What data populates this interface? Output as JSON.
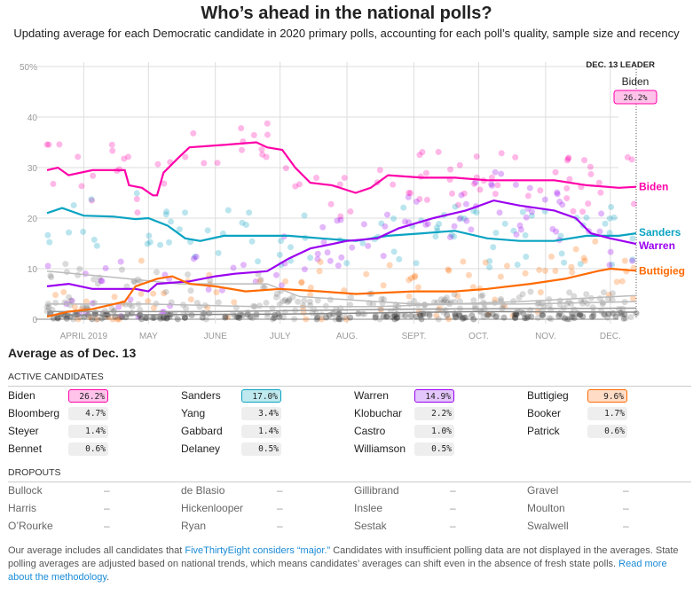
{
  "header": {
    "title": "Who’s ahead in the national polls?",
    "subtitle": "Updating average for each Democratic candidate in 2020 primary polls, accounting for each poll’s quality, sample size and recency"
  },
  "chart_data": {
    "type": "line",
    "ylim": [
      0,
      50
    ],
    "yticks": [
      "0",
      "10",
      "20",
      "30",
      "40",
      "50%"
    ],
    "ytick_values": [
      0,
      10,
      20,
      30,
      40,
      50
    ],
    "xticks": [
      {
        "date": "2019-04-01",
        "label": "APRIL 2019"
      },
      {
        "date": "2019-05-01",
        "label": "MAY"
      },
      {
        "date": "2019-06-01",
        "label": "JUNE"
      },
      {
        "date": "2019-07-01",
        "label": "JULY"
      },
      {
        "date": "2019-08-01",
        "label": "AUG."
      },
      {
        "date": "2019-09-01",
        "label": "SEPT."
      },
      {
        "date": "2019-10-01",
        "label": "OCT."
      },
      {
        "date": "2019-11-01",
        "label": "NOV."
      },
      {
        "date": "2019-12-01",
        "label": "DEC."
      }
    ],
    "xlim": [
      "2019-03-15",
      "2019-12-13"
    ],
    "leader": {
      "label": "DEC. 13 LEADER",
      "name": "Biden",
      "value": "26.2%"
    },
    "series": [
      {
        "name": "Biden",
        "color": "#ff00a8",
        "points": [
          [
            "2019-03-15",
            29.5
          ],
          [
            "2019-03-20",
            30
          ],
          [
            "2019-03-25",
            28.5
          ],
          [
            "2019-04-05",
            29.5
          ],
          [
            "2019-04-15",
            29.5
          ],
          [
            "2019-04-20",
            29.5
          ],
          [
            "2019-04-22",
            26.5
          ],
          [
            "2019-04-28",
            26
          ],
          [
            "2019-05-03",
            24.5
          ],
          [
            "2019-05-05",
            24.5
          ],
          [
            "2019-05-08",
            29
          ],
          [
            "2019-05-15",
            32
          ],
          [
            "2019-05-20",
            34
          ],
          [
            "2019-06-05",
            34.5
          ],
          [
            "2019-06-20",
            35
          ],
          [
            "2019-06-25",
            34
          ],
          [
            "2019-07-02",
            33.5
          ],
          [
            "2019-07-08",
            30
          ],
          [
            "2019-07-15",
            27
          ],
          [
            "2019-07-25",
            26.5
          ],
          [
            "2019-08-05",
            25
          ],
          [
            "2019-08-12",
            26
          ],
          [
            "2019-08-20",
            28.5
          ],
          [
            "2019-09-05",
            28
          ],
          [
            "2019-09-20",
            28
          ],
          [
            "2019-10-05",
            27.5
          ],
          [
            "2019-10-20",
            27.5
          ],
          [
            "2019-11-05",
            27.5
          ],
          [
            "2019-11-20",
            26.5
          ],
          [
            "2019-12-05",
            26
          ],
          [
            "2019-12-13",
            26.2
          ]
        ]
      },
      {
        "name": "Sanders",
        "color": "#0aa3c2",
        "points": [
          [
            "2019-03-15",
            21
          ],
          [
            "2019-03-22",
            22
          ],
          [
            "2019-04-01",
            20.5
          ],
          [
            "2019-04-15",
            20.3
          ],
          [
            "2019-04-25",
            19.8
          ],
          [
            "2019-05-01",
            20
          ],
          [
            "2019-05-10",
            18.5
          ],
          [
            "2019-05-18",
            16
          ],
          [
            "2019-05-25",
            15.5
          ],
          [
            "2019-06-05",
            16.5
          ],
          [
            "2019-06-20",
            16.5
          ],
          [
            "2019-07-05",
            16.5
          ],
          [
            "2019-07-20",
            16
          ],
          [
            "2019-08-05",
            15.5
          ],
          [
            "2019-08-20",
            16.5
          ],
          [
            "2019-09-05",
            17
          ],
          [
            "2019-09-20",
            17.5
          ],
          [
            "2019-10-05",
            16
          ],
          [
            "2019-10-20",
            15.5
          ],
          [
            "2019-11-05",
            15.5
          ],
          [
            "2019-11-20",
            16.5
          ],
          [
            "2019-12-05",
            16.5
          ],
          [
            "2019-12-13",
            17.0
          ]
        ]
      },
      {
        "name": "Warren",
        "color": "#9b00f0",
        "points": [
          [
            "2019-03-15",
            6.5
          ],
          [
            "2019-03-25",
            7
          ],
          [
            "2019-04-05",
            6
          ],
          [
            "2019-04-25",
            6
          ],
          [
            "2019-05-01",
            5.5
          ],
          [
            "2019-05-05",
            7
          ],
          [
            "2019-05-20",
            7.5
          ],
          [
            "2019-06-01",
            8.5
          ],
          [
            "2019-06-10",
            9
          ],
          [
            "2019-06-25",
            9.5
          ],
          [
            "2019-07-05",
            12
          ],
          [
            "2019-07-15",
            14
          ],
          [
            "2019-08-01",
            15.5
          ],
          [
            "2019-08-15",
            16
          ],
          [
            "2019-08-25",
            18
          ],
          [
            "2019-09-10",
            20
          ],
          [
            "2019-09-25",
            21.5
          ],
          [
            "2019-10-08",
            23.5
          ],
          [
            "2019-10-20",
            22.5
          ],
          [
            "2019-11-05",
            21.5
          ],
          [
            "2019-11-15",
            20
          ],
          [
            "2019-11-22",
            17
          ],
          [
            "2019-12-01",
            16
          ],
          [
            "2019-12-13",
            14.9
          ]
        ]
      },
      {
        "name": "Buttigieg",
        "color": "#ff6a00",
        "points": [
          [
            "2019-03-15",
            0.5
          ],
          [
            "2019-03-25",
            1.5
          ],
          [
            "2019-04-05",
            2
          ],
          [
            "2019-04-15",
            3
          ],
          [
            "2019-04-20",
            3.5
          ],
          [
            "2019-04-25",
            6.5
          ],
          [
            "2019-05-05",
            8
          ],
          [
            "2019-05-12",
            8.5
          ],
          [
            "2019-05-20",
            7
          ],
          [
            "2019-06-01",
            6.5
          ],
          [
            "2019-06-15",
            5.5
          ],
          [
            "2019-07-01",
            6
          ],
          [
            "2019-07-20",
            5.5
          ],
          [
            "2019-08-05",
            5
          ],
          [
            "2019-09-01",
            5.5
          ],
          [
            "2019-09-20",
            5.5
          ],
          [
            "2019-10-05",
            6
          ],
          [
            "2019-10-25",
            7
          ],
          [
            "2019-11-10",
            8
          ],
          [
            "2019-11-25",
            9.5
          ],
          [
            "2019-12-01",
            10
          ],
          [
            "2019-12-13",
            9.6
          ]
        ]
      },
      {
        "color": "#bbbbbb",
        "points": [
          [
            "2019-03-15",
            9.5
          ],
          [
            "2019-04-10",
            8.5
          ],
          [
            "2019-05-15",
            7
          ],
          [
            "2019-06-25",
            7
          ],
          [
            "2019-07-10",
            4.5
          ],
          [
            "2019-09-01",
            3
          ],
          [
            "2019-10-20",
            3
          ],
          [
            "2019-12-13",
            3.5
          ]
        ]
      },
      {
        "color": "#bbbbbb",
        "points": [
          [
            "2019-03-15",
            3
          ],
          [
            "2019-05-01",
            3
          ],
          [
            "2019-06-20",
            2.5
          ],
          [
            "2019-08-15",
            2.5
          ],
          [
            "2019-10-20",
            3.5
          ],
          [
            "2019-12-13",
            4.7
          ]
        ]
      },
      {
        "color": "#999999",
        "points": [
          [
            "2019-03-15",
            1.5
          ],
          [
            "2019-06-01",
            1.5
          ],
          [
            "2019-09-01",
            2
          ],
          [
            "2019-12-13",
            2.2
          ]
        ]
      },
      {
        "color": "#888888",
        "points": [
          [
            "2019-03-15",
            0.8
          ],
          [
            "2019-07-01",
            1
          ],
          [
            "2019-10-01",
            1.5
          ],
          [
            "2019-12-13",
            1.4
          ]
        ]
      }
    ]
  },
  "summary": {
    "title": "Average as of Dec. 13",
    "active_label": "ACTIVE CANDIDATES",
    "dropouts_label": "DROPOUTS",
    "active": [
      {
        "name": "Biden",
        "value": "26.2%",
        "bg": "#ffc3ea",
        "border": "#ff00a8"
      },
      {
        "name": "Sanders",
        "value": "17.0%",
        "bg": "#bfe9ef",
        "border": "#0aa3c2"
      },
      {
        "name": "Warren",
        "value": "14.9%",
        "bg": "#e3c6fb",
        "border": "#9b00f0"
      },
      {
        "name": "Buttigieg",
        "value": "9.6%",
        "bg": "#ffdcc6",
        "border": "#ff6a00"
      },
      {
        "name": "Bloomberg",
        "value": "4.7%"
      },
      {
        "name": "Yang",
        "value": "3.4%"
      },
      {
        "name": "Klobuchar",
        "value": "2.2%"
      },
      {
        "name": "Booker",
        "value": "1.7%"
      },
      {
        "name": "Steyer",
        "value": "1.4%"
      },
      {
        "name": "Gabbard",
        "value": "1.4%"
      },
      {
        "name": "Castro",
        "value": "1.0%"
      },
      {
        "name": "Patrick",
        "value": "0.6%"
      },
      {
        "name": "Bennet",
        "value": "0.6%"
      },
      {
        "name": "Delaney",
        "value": "0.5%"
      },
      {
        "name": "Williamson",
        "value": "0.5%"
      }
    ],
    "dropouts": [
      {
        "name": "Bullock",
        "value": "–"
      },
      {
        "name": "de Blasio",
        "value": "–"
      },
      {
        "name": "Gillibrand",
        "value": "–"
      },
      {
        "name": "Gravel",
        "value": "–"
      },
      {
        "name": "Harris",
        "value": "–"
      },
      {
        "name": "Hickenlooper",
        "value": "–"
      },
      {
        "name": "Inslee",
        "value": "–"
      },
      {
        "name": "Moulton",
        "value": "–"
      },
      {
        "name": "O’Rourke",
        "value": "–"
      },
      {
        "name": "Ryan",
        "value": "–"
      },
      {
        "name": "Sestak",
        "value": "–"
      },
      {
        "name": "Swalwell",
        "value": "–"
      }
    ]
  },
  "footer": {
    "t1": "Our average includes all candidates that ",
    "link1": "FiveThirtyEight considers “major.”",
    "t2": " Candidates with insufficient polling data are not displayed in the averages. State polling averages are adjusted based on national trends, which means candidates’ averages can shift even in the absence of fresh state polls. ",
    "link2": "Read more about the methodology",
    "t3": "."
  }
}
